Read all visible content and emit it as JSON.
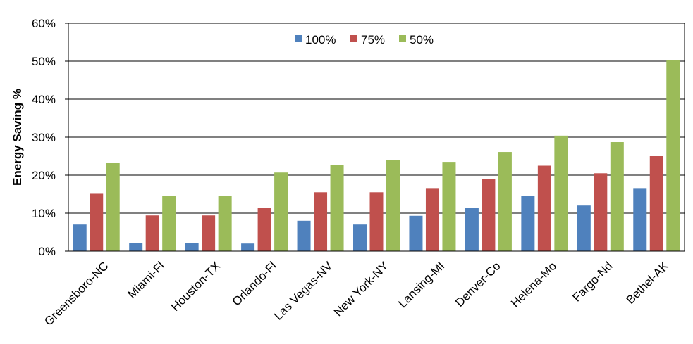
{
  "chart_data": {
    "type": "bar",
    "title": "",
    "xlabel": "",
    "ylabel": "Energy Saving %",
    "ylim": [
      0,
      60
    ],
    "yticks": [
      "0%",
      "10%",
      "20%",
      "30%",
      "40%",
      "50%",
      "60%"
    ],
    "grid": true,
    "legend_position": "top-center",
    "categories": [
      "Greensboro-NC",
      "Miami-Fl",
      "Houston-TX",
      "Orlando-Fl",
      "Las Vegas-NV",
      "New York-NY",
      "Lansing-MI",
      "Denver-Co",
      "Helena-Mo",
      "Fargo-Nd",
      "Bethel-AK"
    ],
    "series": [
      {
        "name": "100%",
        "color": "#4F81BD",
        "values": [
          7,
          2.2,
          2.2,
          2,
          8,
          7,
          9.3,
          11.3,
          14.6,
          12,
          16.6
        ]
      },
      {
        "name": "75%",
        "color": "#C0504D",
        "values": [
          15.1,
          9.4,
          9.4,
          11.4,
          15.5,
          15.5,
          16.6,
          18.9,
          22.5,
          20.5,
          25
        ]
      },
      {
        "name": "50%",
        "color": "#9BBB59",
        "values": [
          23.3,
          14.6,
          14.6,
          20.7,
          22.6,
          23.9,
          23.5,
          26.1,
          30.4,
          28.7,
          50.2
        ]
      }
    ]
  }
}
